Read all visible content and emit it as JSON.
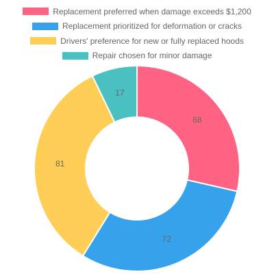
{
  "chart_data": {
    "type": "pie",
    "variant": "doughnut",
    "legend_position": "top",
    "categories": [
      "Replacement preferred when damage exceeds $1,200",
      "Replacement prioritized for deformation or cracks",
      "Drivers' preference for new or fully replaced hoods",
      "Repair chosen for minor damage"
    ],
    "values": [
      68,
      72,
      81,
      17
    ],
    "colors": [
      "#ff6384",
      "#36a2eb",
      "#ffce56",
      "#4bc0c0"
    ],
    "title": ""
  }
}
